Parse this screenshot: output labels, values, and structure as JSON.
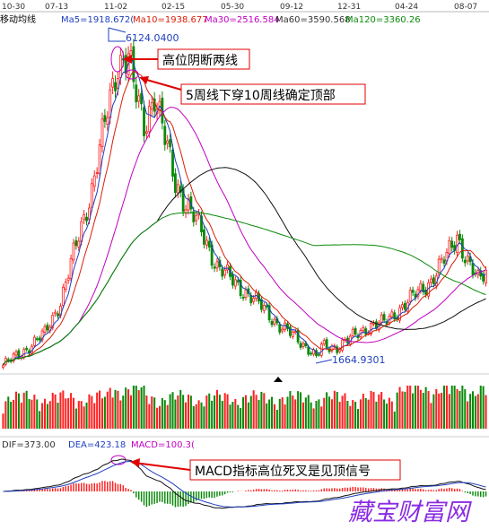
{
  "header": {
    "dates": [
      "10-30",
      "07-13",
      "11-02",
      "02-15",
      "05-30",
      "09-12",
      "12-31",
      "04-24",
      "08-07"
    ],
    "indicator_name": "移动均线",
    "ma_labels": [
      {
        "text": "Ma5=1918.672(",
        "color": "#1f3fbf"
      },
      {
        "text": "Ma10=1938.677",
        "color": "#d81e06"
      },
      {
        "text": "Ma30=2516.584",
        "color": "#c000c0"
      },
      {
        "text": "Ma60=3590.568",
        "color": "#333333"
      },
      {
        "text": "Ma120=3360.26",
        "color": "#0a8a0a"
      }
    ]
  },
  "macd_header": [
    {
      "text": "DIF=373.00",
      "color": "#333333"
    },
    {
      "text": "DEA=423.18",
      "color": "#1f3fbf"
    },
    {
      "text": "MACD=100.3(",
      "color": "#c000c0"
    }
  ],
  "annotations": {
    "high_value": "6124.0400",
    "low_value": "1664.9301",
    "label_top": "高位阴断两线",
    "label_cross": "5周线下穿10周线确定顶部",
    "label_macd": "MACD指标高位死叉是见顶信号"
  },
  "watermark": "藏宝财富网",
  "colors": {
    "up": "#ff2020",
    "down": "#0a8a0a",
    "ma5": "#1f3fbf",
    "ma10": "#d81e06",
    "ma30": "#c000c0",
    "ma60": "#111111",
    "ma120": "#0a8a0a",
    "dif": "#111111",
    "dea": "#1f3fbf",
    "marker_circle": "#c000c0"
  },
  "chart_data": {
    "type": "candlestick",
    "title": "移动均线",
    "x_ticks": [
      "10-30",
      "07-13",
      "11-02",
      "02-15",
      "05-30",
      "09-12",
      "12-31",
      "04-24",
      "08-07"
    ],
    "close_keyframes": [
      [
        0,
        1600
      ],
      [
        8,
        1800
      ],
      [
        16,
        2050
      ],
      [
        22,
        2500
      ],
      [
        28,
        3300
      ],
      [
        34,
        4100
      ],
      [
        40,
        5200
      ],
      [
        44,
        5900
      ],
      [
        48,
        6000
      ],
      [
        50,
        5550
      ],
      [
        54,
        5000
      ],
      [
        58,
        5450
      ],
      [
        62,
        4800
      ],
      [
        66,
        4200
      ],
      [
        70,
        3900
      ],
      [
        76,
        3500
      ],
      [
        82,
        3000
      ],
      [
        88,
        2800
      ],
      [
        94,
        2600
      ],
      [
        100,
        2400
      ],
      [
        106,
        2150
      ],
      [
        112,
        2000
      ],
      [
        118,
        1800
      ],
      [
        120,
        1700
      ],
      [
        122,
        1860
      ],
      [
        128,
        1860
      ],
      [
        134,
        2000
      ],
      [
        140,
        2150
      ],
      [
        146,
        2200
      ],
      [
        152,
        2400
      ],
      [
        158,
        2600
      ],
      [
        164,
        2800
      ],
      [
        170,
        3150
      ],
      [
        174,
        3450
      ],
      [
        178,
        3050
      ],
      [
        182,
        2800
      ],
      [
        185,
        2950
      ]
    ],
    "ylim": [
      1500,
      6400
    ],
    "high": 6124.04,
    "low": 1664.9301,
    "ma_last": {
      "Ma5": 1918.672,
      "Ma10": 1938.677,
      "Ma30": 2516.584,
      "Ma60": 3590.568,
      "Ma120": 3360.26
    },
    "macd_last": {
      "DIF": 373.0,
      "DEA": 423.18,
      "MACD": 100.3
    }
  }
}
